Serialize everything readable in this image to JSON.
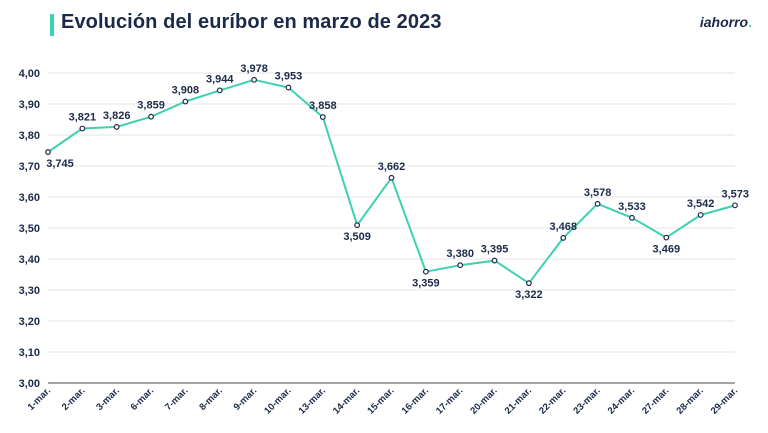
{
  "header": {
    "title": "Evolución del euríbor en marzo de 2023",
    "logo_text": "iahorro",
    "logo_dot": "."
  },
  "colors": {
    "line": "#3bd1b1",
    "text": "#1b2a4a",
    "grid": "#e6e6e6",
    "axis": "#4a4a4a"
  },
  "chart_data": {
    "type": "line",
    "title": "Evolución del euríbor en marzo de 2023",
    "xlabel": "",
    "ylabel": "",
    "ylim": [
      3.0,
      4.0
    ],
    "yticks": [
      3.0,
      3.1,
      3.2,
      3.3,
      3.4,
      3.5,
      3.6,
      3.7,
      3.8,
      3.9,
      4.0
    ],
    "ytick_labels": [
      "3,00",
      "3,10",
      "3,20",
      "3,30",
      "3,40",
      "3,50",
      "3,60",
      "3,70",
      "3,80",
      "3,90",
      "4,00"
    ],
    "grid": true,
    "categories": [
      "1-mar.",
      "2-mar.",
      "3-mar.",
      "6-mar.",
      "7-mar.",
      "8-mar.",
      "9-mar.",
      "10-mar.",
      "13-mar.",
      "14-mar.",
      "15-mar.",
      "16-mar.",
      "17-mar.",
      "20-mar.",
      "21-mar.",
      "22-mar.",
      "23-mar.",
      "24-mar.",
      "27-mar.",
      "28-mar.",
      "29-mar."
    ],
    "values": [
      3.745,
      3.821,
      3.826,
      3.859,
      3.908,
      3.944,
      3.978,
      3.953,
      3.858,
      3.509,
      3.662,
      3.359,
      3.38,
      3.395,
      3.322,
      3.468,
      3.578,
      3.533,
      3.469,
      3.542,
      3.573
    ],
    "value_labels": [
      "3,745",
      "3,821",
      "3,826",
      "3,859",
      "3,908",
      "3,944",
      "3,978",
      "3,953",
      "3,858",
      "3,509",
      "3,662",
      "3,359",
      "3,380",
      "3,395",
      "3,322",
      "3,468",
      "3,578",
      "3,533",
      "3,469",
      "3,542",
      "3,573"
    ]
  }
}
